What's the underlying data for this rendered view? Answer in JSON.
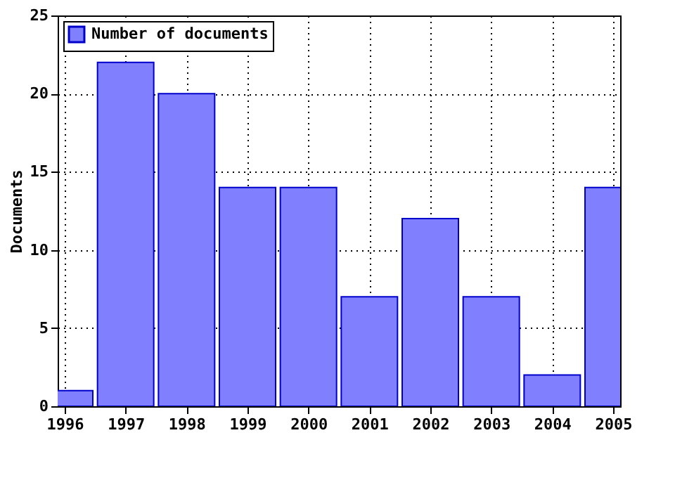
{
  "chart_data": {
    "type": "bar",
    "ylabel": "Documents",
    "x": [
      1996,
      1997,
      1998,
      1999,
      2000,
      2001,
      2002,
      2003,
      2004,
      2005
    ],
    "series": [
      {
        "name": "Number of documents",
        "color": "#8080ff",
        "values": [
          1,
          22,
          20,
          14,
          14,
          7,
          12,
          7,
          2,
          14
        ]
      }
    ],
    "xlim": [
      1996,
      2005
    ],
    "xticks": [
      1996,
      1997,
      1998,
      1999,
      2000,
      2001,
      2002,
      2003,
      2004,
      2005
    ],
    "ylim": [
      0,
      25
    ],
    "yticks": [
      0,
      5,
      10,
      15,
      20,
      25
    ],
    "grid": true,
    "legend": "top left"
  }
}
